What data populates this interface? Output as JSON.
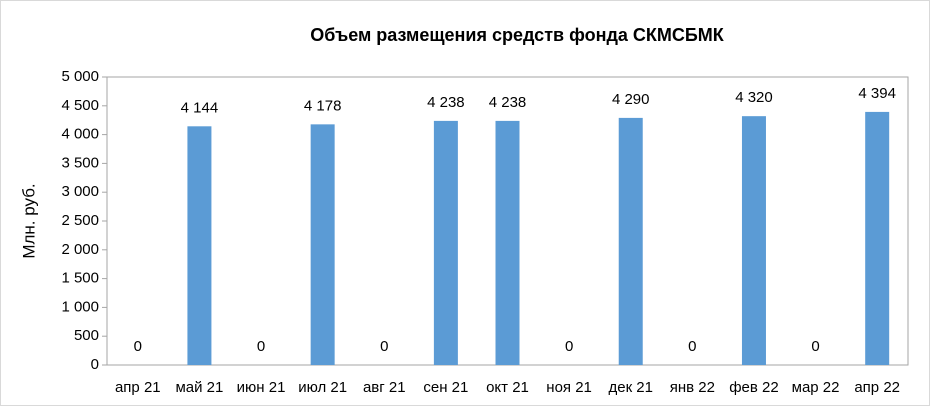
{
  "chart_data": {
    "type": "bar",
    "title": "Объем размещения средств фонда СКМСБМК",
    "y_label": "Млн. руб.",
    "categories": [
      "апр 21",
      "май 21",
      "июн 21",
      "июл 21",
      "авг 21",
      "сен 21",
      "окт 21",
      "ноя 21",
      "дек 21",
      "янв 22",
      "фев 22",
      "мар 22",
      "апр 22"
    ],
    "values": [
      0,
      4144,
      0,
      4178,
      0,
      4238,
      4238,
      0,
      4290,
      0,
      4320,
      0,
      4394
    ],
    "value_labels": [
      "0",
      "4 144",
      "0",
      "4 178",
      "0",
      "4 238",
      "4 238",
      "0",
      "4 290",
      "0",
      "4 320",
      "0",
      "4 394"
    ],
    "color": "#5b9bd5",
    "ylim": [
      0,
      5000
    ],
    "yticks": [
      0,
      500,
      {
        "value": 1000,
        "label": "1 000"
      },
      {
        "value": 1500,
        "label": "1 500"
      },
      {
        "value": 2000,
        "label": "2 000"
      },
      {
        "value": 2500,
        "label": "2 500"
      },
      {
        "value": 3000,
        "label": "3 000"
      },
      {
        "value": 3500,
        "label": "3 500"
      },
      {
        "value": 4000,
        "label": "4 000"
      },
      {
        "value": 4500,
        "label": "4 500"
      },
      {
        "value": 5000,
        "label": "5 000"
      }
    ],
    "grid": false
  }
}
